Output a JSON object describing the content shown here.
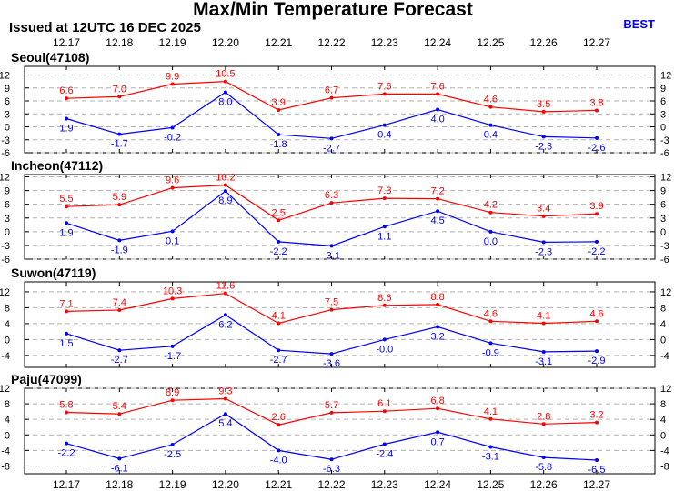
{
  "header": {
    "title": "Max/Min Temperature Forecast",
    "issued": "Issued at 12UTC 16 DEC 2025",
    "model": "BEST"
  },
  "colors": {
    "max": "#ff0000",
    "min": "#0000ff",
    "grid": "#b0b0b0"
  },
  "chart_data": {
    "type": "line",
    "x": [
      "12.17",
      "12.18",
      "12.19",
      "12.20",
      "12.21",
      "12.22",
      "12.23",
      "12.24",
      "12.25",
      "12.26",
      "12.27"
    ],
    "panels": [
      {
        "station": "Seoul(47108)",
        "ylim": [
          -6,
          14
        ],
        "yticks": [
          -6,
          -3,
          0,
          3,
          6,
          9,
          12
        ],
        "series": [
          {
            "key": "max",
            "values": [
              6.6,
              7.0,
              9.9,
              10.5,
              3.9,
              6.7,
              7.6,
              7.6,
              4.6,
              3.5,
              3.8
            ]
          },
          {
            "key": "min",
            "values": [
              1.9,
              -1.7,
              -0.2,
              8.0,
              -1.8,
              -2.7,
              0.4,
              4.0,
              0.4,
              -2.3,
              -2.6
            ]
          }
        ]
      },
      {
        "station": "Incheon(47112)",
        "ylim": [
          -6,
          12.5
        ],
        "yticks": [
          -6,
          -3,
          0,
          3,
          6,
          9,
          12
        ],
        "series": [
          {
            "key": "max",
            "values": [
              5.5,
              5.9,
              9.6,
              10.2,
              2.5,
              6.3,
              7.3,
              7.2,
              4.2,
              3.4,
              3.9
            ]
          },
          {
            "key": "min",
            "values": [
              1.9,
              -1.9,
              0.1,
              8.9,
              -2.2,
              -3.1,
              1.1,
              4.5,
              0.0,
              -2.3,
              -2.2
            ]
          }
        ]
      },
      {
        "station": "Suwon(47119)",
        "ylim": [
          -7,
          14.5
        ],
        "yticks": [
          -4,
          0,
          4,
          8,
          12
        ],
        "series": [
          {
            "key": "max",
            "values": [
              7.1,
              7.4,
              10.3,
              11.6,
              4.1,
              7.5,
              8.6,
              8.8,
              4.6,
              4.1,
              4.6
            ]
          },
          {
            "key": "min",
            "values": [
              1.5,
              -2.7,
              -1.7,
              6.2,
              -2.7,
              -3.6,
              -0.0,
              3.2,
              -0.9,
              -3.1,
              -2.9
            ]
          }
        ]
      },
      {
        "station": "Paju(47099)",
        "ylim": [
          -10,
          12
        ],
        "yticks": [
          -8,
          -4,
          0,
          4,
          8,
          12
        ],
        "series": [
          {
            "key": "max",
            "values": [
              5.8,
              5.4,
              8.9,
              9.3,
              2.6,
              5.7,
              6.1,
              6.8,
              4.1,
              2.8,
              3.2
            ]
          },
          {
            "key": "min",
            "values": [
              -2.2,
              -6.1,
              -2.5,
              5.4,
              -4.0,
              -6.3,
              -2.4,
              0.7,
              -3.1,
              -5.8,
              -6.5
            ]
          }
        ]
      }
    ]
  }
}
